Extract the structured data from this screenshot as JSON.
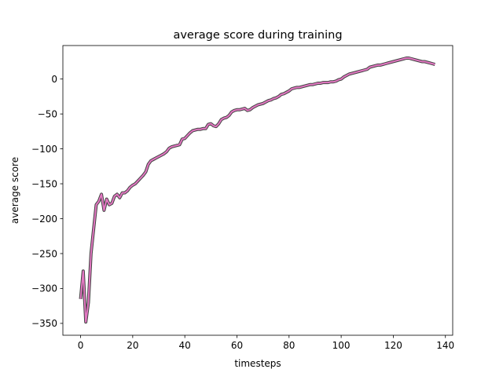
{
  "chart_data": {
    "type": "line",
    "title": "average score during training",
    "xlabel": "timesteps",
    "ylabel": "average score",
    "xlim": [
      -6.8,
      142.8
    ],
    "ylim": [
      -367,
      48
    ],
    "xticks": [
      0,
      20,
      40,
      60,
      80,
      100,
      120,
      140
    ],
    "yticks": [
      -350,
      -300,
      -250,
      -200,
      -150,
      -100,
      -50,
      0
    ],
    "ytick_labels": [
      "−350",
      "−300",
      "−250",
      "−200",
      "−150",
      "−100",
      "−50",
      "0"
    ],
    "grid": false,
    "legend": "none",
    "line_color": "#e377c2",
    "edge_color": "#444444",
    "series": [
      {
        "x": [
          0,
          1,
          2,
          3,
          4,
          5,
          6,
          7,
          8,
          9,
          10,
          11,
          12,
          13,
          14,
          15,
          16,
          17,
          18,
          19,
          20,
          21,
          22,
          23,
          24,
          25,
          26,
          27,
          28,
          29,
          30,
          31,
          32,
          33,
          34,
          35,
          36,
          37,
          38,
          39,
          40,
          41,
          42,
          43,
          44,
          45,
          46,
          47,
          48,
          49,
          50,
          51,
          52,
          53,
          54,
          55,
          56,
          57,
          58,
          59,
          60,
          61,
          62,
          63,
          64,
          65,
          66,
          67,
          68,
          69,
          70,
          71,
          72,
          73,
          74,
          75,
          76,
          77,
          78,
          79,
          80,
          81,
          82,
          83,
          84,
          85,
          86,
          87,
          88,
          89,
          90,
          91,
          92,
          93,
          94,
          95,
          96,
          97,
          98,
          99,
          100,
          101,
          102,
          103,
          104,
          105,
          106,
          107,
          108,
          109,
          110,
          111,
          112,
          113,
          114,
          115,
          116,
          117,
          118,
          119,
          120,
          121,
          122,
          123,
          124,
          125,
          126,
          127,
          128,
          129,
          130,
          131,
          132,
          133,
          134,
          135,
          136
        ],
        "y": [
          -315,
          -275,
          -348,
          -320,
          -250,
          -215,
          -180,
          -175,
          -165,
          -188,
          -172,
          -180,
          -178,
          -168,
          -165,
          -170,
          -163,
          -163,
          -160,
          -155,
          -152,
          -150,
          -146,
          -142,
          -138,
          -133,
          -122,
          -117,
          -115,
          -113,
          -111,
          -109,
          -107,
          -104,
          -99,
          -97,
          -96,
          -95,
          -94,
          -86,
          -85,
          -81,
          -77,
          -74,
          -73,
          -72,
          -72,
          -71,
          -71,
          -65,
          -64,
          -67,
          -68,
          -64,
          -58,
          -56,
          -55,
          -52,
          -47,
          -45,
          -44,
          -44,
          -43,
          -42,
          -45,
          -44,
          -41,
          -39,
          -37,
          -36,
          -35,
          -33,
          -31,
          -30,
          -28,
          -27,
          -25,
          -22,
          -21,
          -19,
          -17,
          -14,
          -13,
          -12,
          -12,
          -11,
          -10,
          -9,
          -8,
          -8,
          -7,
          -6,
          -6,
          -5,
          -5,
          -5,
          -4,
          -4,
          -3,
          -1,
          0,
          3,
          5,
          7,
          8,
          9,
          10,
          11,
          12,
          13,
          14,
          17,
          18,
          19,
          20,
          20,
          21,
          22,
          23,
          24,
          25,
          26,
          27,
          28,
          29,
          30,
          30,
          29,
          28,
          27,
          26,
          25,
          25,
          24,
          23,
          22,
          21
        ]
      }
    ]
  }
}
